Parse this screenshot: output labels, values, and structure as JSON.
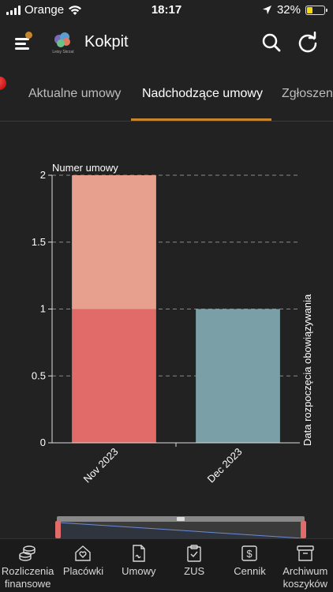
{
  "status_bar": {
    "carrier": "Orange",
    "time": "18:17",
    "battery": "32%",
    "battery_level": 0.32
  },
  "header": {
    "title": "Kokpit",
    "logo_text": "Leisy Skrzat"
  },
  "tabs": [
    {
      "label": "Aktualne umowy",
      "active": false
    },
    {
      "label": "Nadchodzące umowy",
      "active": true
    },
    {
      "label": "Zgłoszen",
      "active": false
    }
  ],
  "chart_data": {
    "type": "bar",
    "ylabel": "Numer umowy",
    "xlabel": "Data rozpoczęcia obowiązywania",
    "categories": [
      "Nov 2023",
      "Dec 2023"
    ],
    "ylim": [
      0,
      2
    ],
    "yticks": [
      "0",
      "0.5",
      "1",
      "1.5",
      "2"
    ],
    "grid": true,
    "stacked": true,
    "series": [
      {
        "values": [
          1,
          1
        ],
        "colors": [
          "#e06b68",
          "#7a9fa6"
        ]
      },
      {
        "values": [
          1,
          0
        ],
        "colors": [
          "#e8a08e",
          "#7a9fa6"
        ]
      }
    ]
  },
  "bottom_nav": [
    {
      "label": "Rozliczenia finansowe",
      "icon": "coins-icon"
    },
    {
      "label": "Placówki",
      "icon": "house-heart-icon"
    },
    {
      "label": "Umowy",
      "icon": "document-icon"
    },
    {
      "label": "ZUS",
      "icon": "clipboard-check-icon"
    },
    {
      "label": "Cennik",
      "icon": "dollar-icon"
    },
    {
      "label": "Archiwum koszyków",
      "icon": "archive-icon"
    }
  ]
}
